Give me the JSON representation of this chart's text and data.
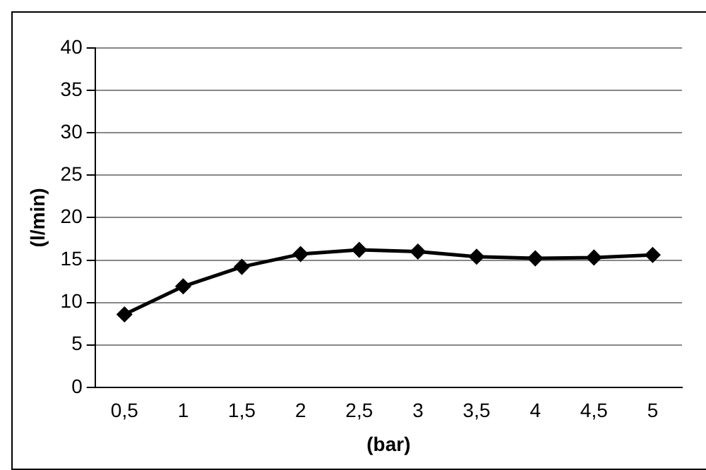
{
  "chart_data": {
    "type": "line",
    "categories": [
      "0,5",
      "1",
      "1,5",
      "2",
      "2,5",
      "3",
      "3,5",
      "4",
      "4,5",
      "5"
    ],
    "series": [
      {
        "color": "#000000",
        "values": [
          8.6,
          11.9,
          14.2,
          15.7,
          16.2,
          16.0,
          15.4,
          15.2,
          15.3,
          15.6
        ]
      }
    ],
    "xlabel": "(bar)",
    "ylabel": "(l/min)",
    "ylim": [
      0,
      40
    ],
    "yticks": [
      0,
      5,
      10,
      15,
      20,
      25,
      30,
      35,
      40
    ],
    "grid": "y",
    "legend": false,
    "marker": "diamond",
    "line_style": "solid"
  }
}
